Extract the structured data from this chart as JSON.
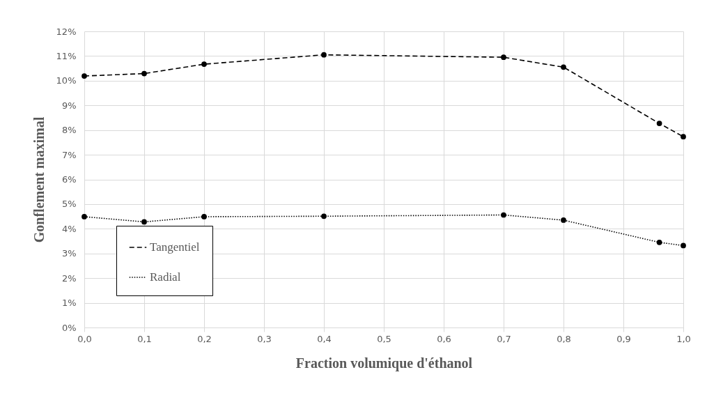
{
  "chart_data": {
    "type": "line",
    "xlabel": "Fraction volumique d'éthanol",
    "ylabel": "Gonflement maximal",
    "x": [
      0,
      0.1,
      0.2,
      0.4,
      0.7,
      0.8,
      0.96,
      1.0
    ],
    "series": [
      {
        "name": "Tangentiel",
        "color": "#000000",
        "line_style": "dashed",
        "values": [
          10.19,
          10.29,
          10.67,
          11.05,
          10.95,
          10.55,
          8.27,
          7.73
        ]
      },
      {
        "name": "Radial",
        "color": "#000000",
        "line_style": "dotted",
        "values": [
          4.49,
          4.28,
          4.49,
          4.51,
          4.56,
          4.35,
          3.45,
          3.32
        ]
      }
    ],
    "xlim": [
      0,
      1
    ],
    "xticks": [
      {
        "value": 0,
        "label": "0,0"
      },
      {
        "value": 0.1,
        "label": "0,1"
      },
      {
        "value": 0.2,
        "label": "0,2"
      },
      {
        "value": 0.3,
        "label": "0,3"
      },
      {
        "value": 0.4,
        "label": "0,4"
      },
      {
        "value": 0.5,
        "label": "0,5"
      },
      {
        "value": 0.6,
        "label": "0,6"
      },
      {
        "value": 0.7,
        "label": "0,7"
      },
      {
        "value": 0.8,
        "label": "0,8"
      },
      {
        "value": 0.9,
        "label": "0,9"
      },
      {
        "value": 1,
        "label": "1,0"
      }
    ],
    "ylim": [
      0,
      12
    ],
    "yticks": [
      {
        "value": 0,
        "label": "0%"
      },
      {
        "value": 1,
        "label": "1%"
      },
      {
        "value": 2,
        "label": "2%"
      },
      {
        "value": 3,
        "label": "3%"
      },
      {
        "value": 4,
        "label": "4%"
      },
      {
        "value": 5,
        "label": "5%"
      },
      {
        "value": 6,
        "label": "6%"
      },
      {
        "value": 7,
        "label": "7%"
      },
      {
        "value": 8,
        "label": "8%"
      },
      {
        "value": 9,
        "label": "9%"
      },
      {
        "value": 10,
        "label": "10%"
      },
      {
        "value": 11,
        "label": "11%"
      },
      {
        "value": 12,
        "label": "12%"
      }
    ],
    "grid": true,
    "legend": "bottom left",
    "marker": "circle"
  }
}
